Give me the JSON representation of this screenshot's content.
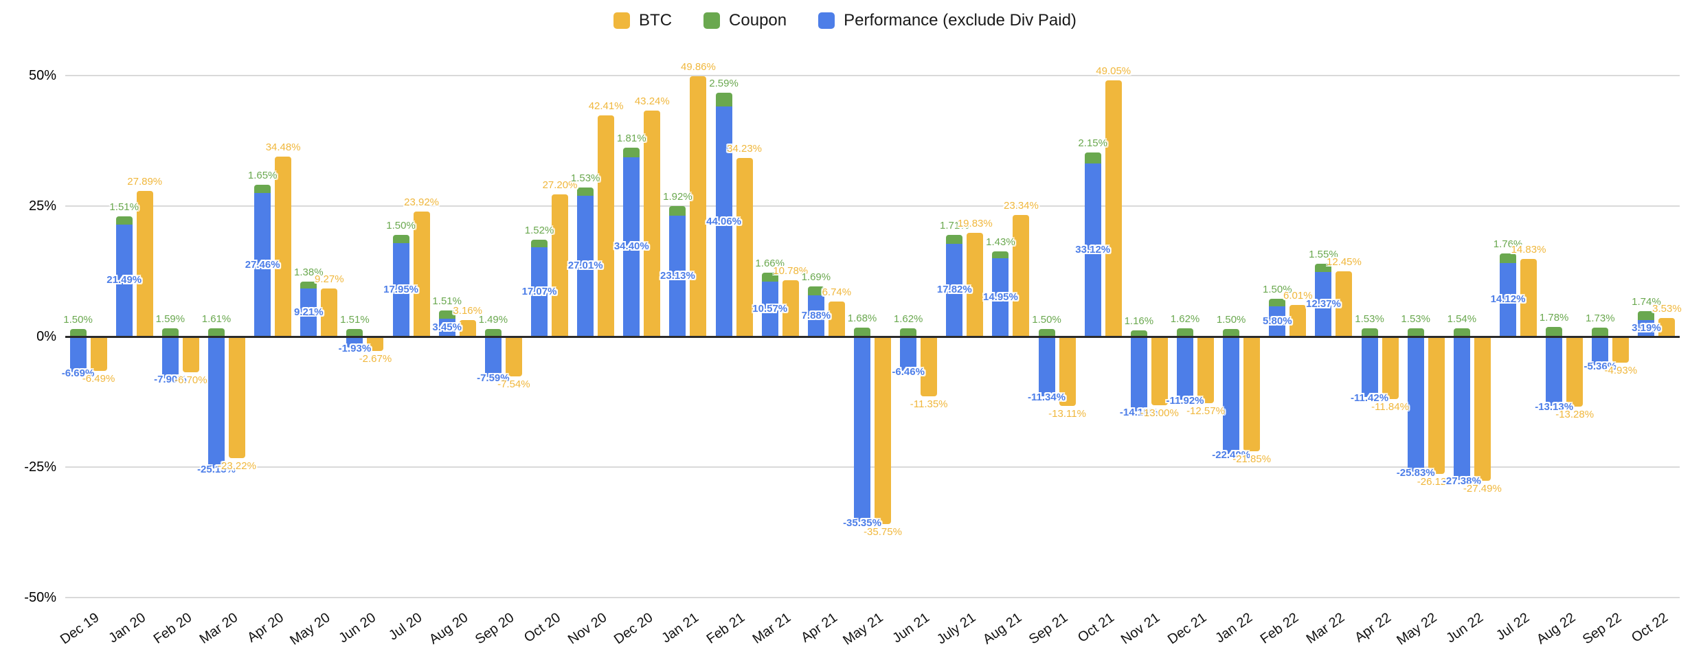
{
  "legend": [
    {
      "name": "BTC",
      "color": "#F0B73C",
      "swatch": "yellow-square"
    },
    {
      "name": "Coupon",
      "color": "#6AA84F",
      "swatch": "green-square"
    },
    {
      "name": "Performance (exclude Div Paid)",
      "color": "#4D7EE8",
      "swatch": "blue-square"
    }
  ],
  "chart_data": {
    "type": "bar",
    "title": "",
    "xlabel": "",
    "ylabel": "",
    "ylim": [
      -50,
      50
    ],
    "y_ticks": [
      "50%",
      "25%",
      "0%",
      "-25%",
      "-50%"
    ],
    "y_tick_values": [
      50,
      25,
      0,
      -25,
      -50
    ],
    "grid": true,
    "legend_position": "top-center",
    "label_format": "percent, 2 decimals, shown on every bar",
    "structure": "Performance and Coupon are stacked in one bar (Coupon on top, Coupon plotted from zero upward when Performance is negative); BTC is a separate bar beside it",
    "categories": [
      "Dec 19",
      "Jan 20",
      "Feb 20",
      "Mar 20",
      "Apr 20",
      "May 20",
      "Jun 20",
      "Jul 20",
      "Aug 20",
      "Sep 20",
      "Oct 20",
      "Nov 20",
      "Dec 20",
      "Jan 21",
      "Feb 21",
      "Mar 21",
      "Apr 21",
      "May 21",
      "Jun 21",
      "July 21",
      "Aug 21",
      "Sep 21",
      "Oct 21",
      "Nov 21",
      "Dec 21",
      "Jan 22",
      "Feb 22",
      "Mar 22",
      "Apr 22",
      "May 22",
      "Jun 22",
      "Jul 22",
      "Aug 22",
      "Sep 22",
      "Oct 22"
    ],
    "series": [
      {
        "name": "BTC",
        "color": "#F0B73C",
        "values": [
          -6.49,
          27.89,
          -6.7,
          -23.22,
          34.48,
          9.27,
          -2.67,
          23.92,
          3.16,
          -7.54,
          27.2,
          42.41,
          43.24,
          49.86,
          34.23,
          10.78,
          6.74,
          -35.75,
          -11.35,
          19.83,
          23.34,
          -13.11,
          49.05,
          -13.0,
          -12.57,
          -21.85,
          6.01,
          12.45,
          -11.84,
          -26.12,
          -27.49,
          14.83,
          -13.28,
          -4.93,
          3.53
        ]
      },
      {
        "name": "Coupon",
        "color": "#6AA84F",
        "values": [
          1.5,
          1.51,
          1.59,
          1.61,
          1.65,
          1.38,
          1.51,
          1.5,
          1.51,
          1.49,
          1.52,
          1.53,
          1.81,
          1.92,
          2.59,
          1.66,
          1.69,
          1.68,
          1.62,
          1.71,
          1.43,
          1.5,
          2.15,
          1.16,
          1.62,
          1.5,
          1.5,
          1.55,
          1.53,
          1.53,
          1.54,
          1.76,
          1.78,
          1.73,
          1.74
        ]
      },
      {
        "name": "Performance (exclude Div Paid)",
        "color": "#4D7EE8",
        "values": [
          -6.69,
          21.49,
          -7.9,
          -25.15,
          27.46,
          9.21,
          -1.93,
          17.95,
          3.45,
          -7.59,
          17.07,
          27.01,
          34.4,
          23.13,
          44.06,
          10.57,
          7.88,
          -35.35,
          -6.46,
          17.82,
          14.95,
          -11.34,
          33.12,
          -14.19,
          -11.92,
          -22.4,
          5.8,
          12.37,
          -11.42,
          -25.83,
          -27.38,
          14.12,
          -13.13,
          -5.36,
          3.19
        ]
      }
    ]
  },
  "colors": {
    "background": "#ffffff",
    "gridline": "#d9d9d9",
    "zero_axis": "#2b2b2b",
    "axis_text": "#000000"
  }
}
